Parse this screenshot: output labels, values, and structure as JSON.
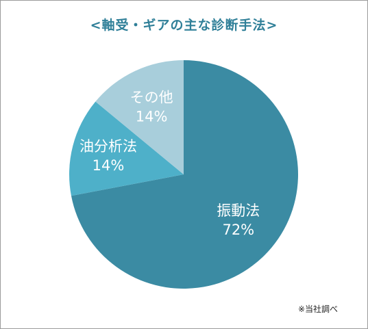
{
  "chart_data": {
    "type": "pie",
    "title": "<軸受・ギアの主な診断手法>",
    "slices": [
      {
        "label": "振動法",
        "value": 72,
        "value_label": "72%",
        "color": "#3b8ba3"
      },
      {
        "label": "油分析法",
        "value": 14,
        "value_label": "14%",
        "color": "#4eb0c9"
      },
      {
        "label": "その他",
        "value": 14,
        "value_label": "14%",
        "color": "#a8cedb"
      }
    ],
    "start_angle": "12 o'clock",
    "direction": "clockwise"
  },
  "footnote": "※当社調べ"
}
